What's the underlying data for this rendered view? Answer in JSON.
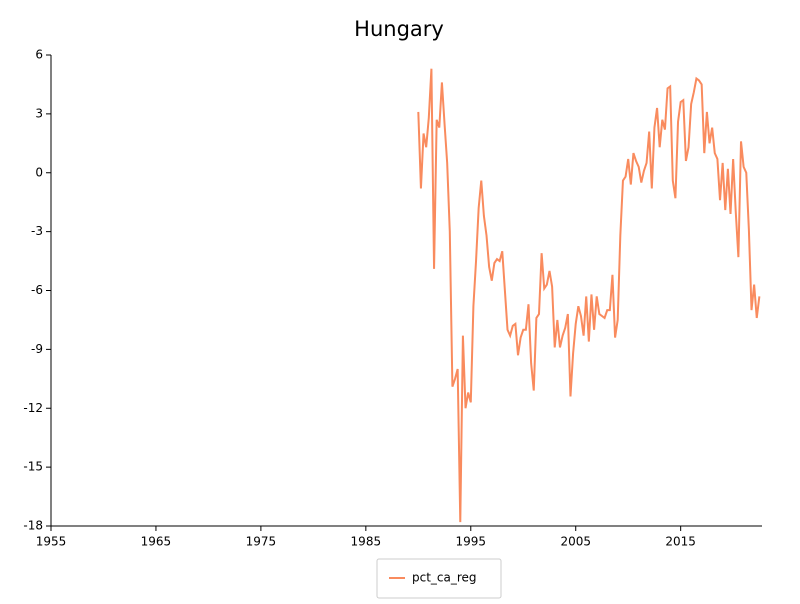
{
  "chart_data": {
    "type": "line",
    "title": "Hungary",
    "x": [
      1990,
      1990.25,
      1990.5,
      1990.75,
      1991,
      1991.25,
      1991.5,
      1991.75,
      1992,
      1992.25,
      1992.5,
      1992.75,
      1993,
      1993.25,
      1993.5,
      1993.75,
      1994,
      1994.25,
      1994.5,
      1994.75,
      1995,
      1995.25,
      1995.5,
      1995.75,
      1996,
      1996.25,
      1996.5,
      1996.75,
      1997,
      1997.25,
      1997.5,
      1997.75,
      1998,
      1998.25,
      1998.5,
      1998.75,
      1999,
      1999.25,
      1999.5,
      1999.75,
      2000,
      2000.25,
      2000.5,
      2000.75,
      2001,
      2001.25,
      2001.5,
      2001.75,
      2002,
      2002.25,
      2002.5,
      2002.75,
      2003,
      2003.25,
      2003.5,
      2003.75,
      2004,
      2004.25,
      2004.5,
      2004.75,
      2005,
      2005.25,
      2005.5,
      2005.75,
      2006,
      2006.25,
      2006.5,
      2006.75,
      2007,
      2007.25,
      2007.5,
      2007.75,
      2008,
      2008.25,
      2008.5,
      2008.75,
      2009,
      2009.25,
      2009.5,
      2009.75,
      2010,
      2010.25,
      2010.5,
      2010.75,
      2011,
      2011.25,
      2011.5,
      2011.75,
      2012,
      2012.25,
      2012.5,
      2012.75,
      2013,
      2013.25,
      2013.5,
      2013.75,
      2014,
      2014.25,
      2014.5,
      2014.75,
      2015,
      2015.25,
      2015.5,
      2015.75,
      2016,
      2016.25,
      2016.5,
      2016.75,
      2017,
      2017.25,
      2017.5,
      2017.75,
      2018,
      2018.25,
      2018.5,
      2018.75,
      2019,
      2019.25,
      2019.5,
      2019.75,
      2020,
      2020.25,
      2020.5,
      2020.75,
      2021,
      2021.25,
      2021.5,
      2021.75,
      2022,
      2022.25,
      2022.5
    ],
    "series": [
      {
        "name": "pct_ca_reg",
        "color": "#f98b5e",
        "values": [
          3.1,
          -0.8,
          2.0,
          1.3,
          2.8,
          5.3,
          -4.9,
          2.7,
          2.3,
          4.6,
          2.5,
          0.5,
          -3.0,
          -10.9,
          -10.5,
          -10.0,
          -17.8,
          -8.3,
          -12.0,
          -11.2,
          -11.7,
          -6.8,
          -4.5,
          -1.8,
          -0.4,
          -2.2,
          -3.2,
          -4.8,
          -5.5,
          -4.6,
          -4.4,
          -4.5,
          -4.0,
          -6.0,
          -8.0,
          -8.3,
          -7.8,
          -7.7,
          -9.3,
          -8.4,
          -8.0,
          -8.0,
          -6.7,
          -9.7,
          -11.1,
          -7.4,
          -7.2,
          -4.1,
          -5.9,
          -5.7,
          -5.0,
          -5.8,
          -8.9,
          -7.5,
          -8.9,
          -8.3,
          -7.9,
          -7.2,
          -11.4,
          -9.2,
          -7.7,
          -6.8,
          -7.3,
          -8.3,
          -6.3,
          -8.6,
          -6.2,
          -8.0,
          -6.3,
          -7.2,
          -7.3,
          -7.4,
          -7.0,
          -7.0,
          -5.2,
          -8.4,
          -7.5,
          -3.2,
          -0.4,
          -0.2,
          0.7,
          -0.6,
          1.0,
          0.6,
          0.3,
          -0.5,
          0.1,
          0.5,
          2.1,
          -0.8,
          2.3,
          3.3,
          1.3,
          2.7,
          2.2,
          4.3,
          4.4,
          -0.4,
          -1.3,
          2.6,
          3.6,
          3.7,
          0.6,
          1.3,
          3.5,
          4.1,
          4.8,
          4.7,
          4.5,
          1.0,
          3.1,
          1.5,
          2.3,
          1.0,
          0.7,
          -1.4,
          0.5,
          -1.9,
          0.2,
          -2.1,
          0.7,
          -2.0,
          -4.3,
          1.6,
          0.3,
          0.0,
          -2.9,
          -7.0,
          -5.7,
          -7.4,
          -6.3
        ]
      }
    ],
    "xlim": [
      1955,
      2022.75
    ],
    "xticks": [
      1955,
      1965,
      1975,
      1985,
      1995,
      2005,
      2015
    ],
    "ylim": [
      -18,
      6
    ],
    "yticks": [
      -18,
      -15,
      -12,
      -9,
      -6,
      -3,
      0,
      3,
      6
    ]
  }
}
